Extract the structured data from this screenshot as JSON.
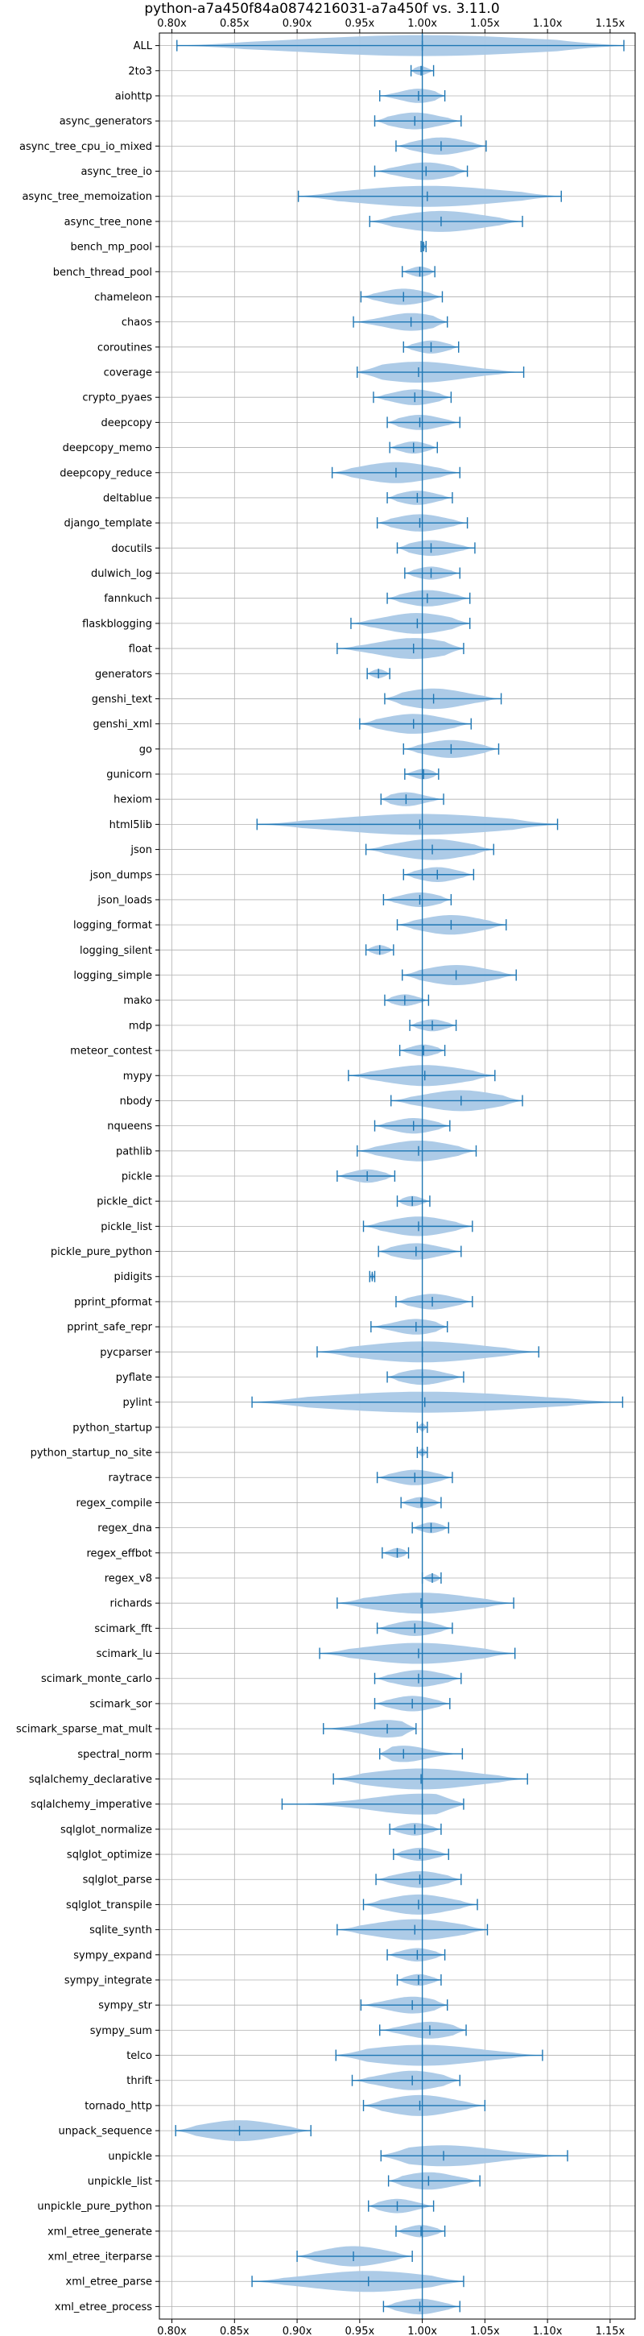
{
  "chart_data": {
    "type": "violin",
    "title": "python-a7a450f84a0874216031-a7a450f vs. 3.11.0",
    "xlim": [
      0.79,
      1.17
    ],
    "xticks": [
      0.8,
      0.85,
      0.9,
      0.95,
      1.0,
      1.05,
      1.1,
      1.15
    ],
    "xtick_labels": [
      "0.80x",
      "0.85x",
      "0.90x",
      "0.95x",
      "1.00x",
      "1.05x",
      "1.10x",
      "1.15x"
    ],
    "grid": true,
    "reference_line": 1.0,
    "colors": {
      "violin": "#a9c8e6",
      "stroke": "#1f77b4",
      "grid": "#b0b0b0"
    },
    "benchmarks": [
      {
        "name": "ALL",
        "min": 0.804,
        "max": 1.161,
        "median": 1.0
      },
      {
        "name": "2to3",
        "min": 0.991,
        "max": 1.009,
        "median": 0.999
      },
      {
        "name": "aiohttp",
        "min": 0.966,
        "max": 1.018,
        "median": 0.997
      },
      {
        "name": "async_generators",
        "min": 0.962,
        "max": 1.031,
        "median": 0.994
      },
      {
        "name": "async_tree_cpu_io_mixed",
        "min": 0.979,
        "max": 1.051,
        "median": 1.015
      },
      {
        "name": "async_tree_io",
        "min": 0.962,
        "max": 1.036,
        "median": 1.003
      },
      {
        "name": "async_tree_memoization",
        "min": 0.901,
        "max": 1.111,
        "median": 1.004
      },
      {
        "name": "async_tree_none",
        "min": 0.958,
        "max": 1.08,
        "median": 1.015
      },
      {
        "name": "bench_mp_pool",
        "min": 0.999,
        "max": 1.003,
        "median": 1.001
      },
      {
        "name": "bench_thread_pool",
        "min": 0.984,
        "max": 1.01,
        "median": 0.998
      },
      {
        "name": "chameleon",
        "min": 0.951,
        "max": 1.016,
        "median": 0.985
      },
      {
        "name": "chaos",
        "min": 0.945,
        "max": 1.02,
        "median": 0.991
      },
      {
        "name": "coroutines",
        "min": 0.985,
        "max": 1.029,
        "median": 1.007
      },
      {
        "name": "coverage",
        "min": 0.948,
        "max": 1.081,
        "median": 0.997
      },
      {
        "name": "crypto_pyaes",
        "min": 0.961,
        "max": 1.023,
        "median": 0.994
      },
      {
        "name": "deepcopy",
        "min": 0.972,
        "max": 1.03,
        "median": 0.998
      },
      {
        "name": "deepcopy_memo",
        "min": 0.974,
        "max": 1.012,
        "median": 0.993
      },
      {
        "name": "deepcopy_reduce",
        "min": 0.928,
        "max": 1.03,
        "median": 0.979
      },
      {
        "name": "deltablue",
        "min": 0.972,
        "max": 1.024,
        "median": 0.996
      },
      {
        "name": "django_template",
        "min": 0.964,
        "max": 1.036,
        "median": 0.998
      },
      {
        "name": "docutils",
        "min": 0.98,
        "max": 1.042,
        "median": 1.007
      },
      {
        "name": "dulwich_log",
        "min": 0.986,
        "max": 1.03,
        "median": 1.007
      },
      {
        "name": "fannkuch",
        "min": 0.972,
        "max": 1.038,
        "median": 1.004
      },
      {
        "name": "flaskblogging",
        "min": 0.943,
        "max": 1.038,
        "median": 0.996
      },
      {
        "name": "float",
        "min": 0.932,
        "max": 1.033,
        "median": 0.993
      },
      {
        "name": "generators",
        "min": 0.956,
        "max": 0.974,
        "median": 0.965
      },
      {
        "name": "genshi_text",
        "min": 0.97,
        "max": 1.063,
        "median": 1.009
      },
      {
        "name": "genshi_xml",
        "min": 0.95,
        "max": 1.039,
        "median": 0.993
      },
      {
        "name": "go",
        "min": 0.985,
        "max": 1.061,
        "median": 1.023
      },
      {
        "name": "gunicorn",
        "min": 0.986,
        "max": 1.013,
        "median": 1.001
      },
      {
        "name": "hexiom",
        "min": 0.967,
        "max": 1.017,
        "median": 0.987
      },
      {
        "name": "html5lib",
        "min": 0.868,
        "max": 1.108,
        "median": 0.998
      },
      {
        "name": "json",
        "min": 0.955,
        "max": 1.057,
        "median": 1.008
      },
      {
        "name": "json_dumps",
        "min": 0.985,
        "max": 1.041,
        "median": 1.012
      },
      {
        "name": "json_loads",
        "min": 0.969,
        "max": 1.023,
        "median": 0.998
      },
      {
        "name": "logging_format",
        "min": 0.98,
        "max": 1.067,
        "median": 1.023
      },
      {
        "name": "logging_silent",
        "min": 0.955,
        "max": 0.977,
        "median": 0.966
      },
      {
        "name": "logging_simple",
        "min": 0.984,
        "max": 1.075,
        "median": 1.027
      },
      {
        "name": "mako",
        "min": 0.97,
        "max": 1.005,
        "median": 0.986
      },
      {
        "name": "mdp",
        "min": 0.99,
        "max": 1.027,
        "median": 1.008
      },
      {
        "name": "meteor_contest",
        "min": 0.982,
        "max": 1.018,
        "median": 1.001
      },
      {
        "name": "mypy",
        "min": 0.941,
        "max": 1.058,
        "median": 1.002
      },
      {
        "name": "nbody",
        "min": 0.975,
        "max": 1.08,
        "median": 1.031
      },
      {
        "name": "nqueens",
        "min": 0.962,
        "max": 1.022,
        "median": 0.993
      },
      {
        "name": "pathlib",
        "min": 0.948,
        "max": 1.043,
        "median": 0.997
      },
      {
        "name": "pickle",
        "min": 0.932,
        "max": 0.978,
        "median": 0.956
      },
      {
        "name": "pickle_dict",
        "min": 0.98,
        "max": 1.006,
        "median": 0.992
      },
      {
        "name": "pickle_list",
        "min": 0.953,
        "max": 1.04,
        "median": 0.997
      },
      {
        "name": "pickle_pure_python",
        "min": 0.965,
        "max": 1.031,
        "median": 0.995
      },
      {
        "name": "pidigits",
        "min": 0.958,
        "max": 0.962,
        "median": 0.96
      },
      {
        "name": "pprint_pformat",
        "min": 0.979,
        "max": 1.04,
        "median": 1.008
      },
      {
        "name": "pprint_safe_repr",
        "min": 0.959,
        "max": 1.02,
        "median": 0.995
      },
      {
        "name": "pycparser",
        "min": 0.916,
        "max": 1.093,
        "median": 1.0
      },
      {
        "name": "pyflate",
        "min": 0.972,
        "max": 1.033,
        "median": 1.0
      },
      {
        "name": "pylint",
        "min": 0.864,
        "max": 1.16,
        "median": 1.002
      },
      {
        "name": "python_startup",
        "min": 0.996,
        "max": 1.004,
        "median": 1.0
      },
      {
        "name": "python_startup_no_site",
        "min": 0.996,
        "max": 1.004,
        "median": 1.0
      },
      {
        "name": "raytrace",
        "min": 0.964,
        "max": 1.024,
        "median": 0.994
      },
      {
        "name": "regex_compile",
        "min": 0.983,
        "max": 1.015,
        "median": 0.999
      },
      {
        "name": "regex_dna",
        "min": 0.992,
        "max": 1.021,
        "median": 1.007
      },
      {
        "name": "regex_effbot",
        "min": 0.968,
        "max": 0.989,
        "median": 0.98
      },
      {
        "name": "regex_v8",
        "min": 1.0,
        "max": 1.015,
        "median": 1.008
      },
      {
        "name": "richards",
        "min": 0.932,
        "max": 1.073,
        "median": 0.999
      },
      {
        "name": "scimark_fft",
        "min": 0.964,
        "max": 1.024,
        "median": 0.994
      },
      {
        "name": "scimark_lu",
        "min": 0.918,
        "max": 1.074,
        "median": 0.997
      },
      {
        "name": "scimark_monte_carlo",
        "min": 0.962,
        "max": 1.031,
        "median": 0.997
      },
      {
        "name": "scimark_sor",
        "min": 0.962,
        "max": 1.022,
        "median": 0.992
      },
      {
        "name": "scimark_sparse_mat_mult",
        "min": 0.921,
        "max": 0.995,
        "median": 0.972
      },
      {
        "name": "spectral_norm",
        "min": 0.966,
        "max": 1.032,
        "median": 0.985
      },
      {
        "name": "sqlalchemy_declarative",
        "min": 0.929,
        "max": 1.084,
        "median": 0.999
      },
      {
        "name": "sqlalchemy_imperative",
        "min": 0.888,
        "max": 1.033,
        "median": 1.0
      },
      {
        "name": "sqlglot_normalize",
        "min": 0.974,
        "max": 1.015,
        "median": 0.994
      },
      {
        "name": "sqlglot_optimize",
        "min": 0.977,
        "max": 1.021,
        "median": 0.998
      },
      {
        "name": "sqlglot_parse",
        "min": 0.963,
        "max": 1.031,
        "median": 0.998
      },
      {
        "name": "sqlglot_transpile",
        "min": 0.953,
        "max": 1.044,
        "median": 0.997
      },
      {
        "name": "sqlite_synth",
        "min": 0.932,
        "max": 1.052,
        "median": 0.994
      },
      {
        "name": "sympy_expand",
        "min": 0.972,
        "max": 1.018,
        "median": 0.996
      },
      {
        "name": "sympy_integrate",
        "min": 0.98,
        "max": 1.015,
        "median": 0.997
      },
      {
        "name": "sympy_str",
        "min": 0.951,
        "max": 1.02,
        "median": 0.992
      },
      {
        "name": "sympy_sum",
        "min": 0.966,
        "max": 1.035,
        "median": 1.006
      },
      {
        "name": "telco",
        "min": 0.931,
        "max": 1.096,
        "median": 1.0
      },
      {
        "name": "thrift",
        "min": 0.944,
        "max": 1.03,
        "median": 0.992
      },
      {
        "name": "tornado_http",
        "min": 0.953,
        "max": 1.05,
        "median": 0.998
      },
      {
        "name": "unpack_sequence",
        "min": 0.803,
        "max": 0.911,
        "median": 0.854
      },
      {
        "name": "unpickle",
        "min": 0.967,
        "max": 1.116,
        "median": 1.017
      },
      {
        "name": "unpickle_list",
        "min": 0.973,
        "max": 1.046,
        "median": 1.005
      },
      {
        "name": "unpickle_pure_python",
        "min": 0.957,
        "max": 1.009,
        "median": 0.98
      },
      {
        "name": "xml_etree_generate",
        "min": 0.979,
        "max": 1.018,
        "median": 0.999
      },
      {
        "name": "xml_etree_iterparse",
        "min": 0.9,
        "max": 0.992,
        "median": 0.945
      },
      {
        "name": "xml_etree_parse",
        "min": 0.864,
        "max": 1.033,
        "median": 0.957
      },
      {
        "name": "xml_etree_process",
        "min": 0.969,
        "max": 1.03,
        "median": 0.998
      }
    ]
  }
}
